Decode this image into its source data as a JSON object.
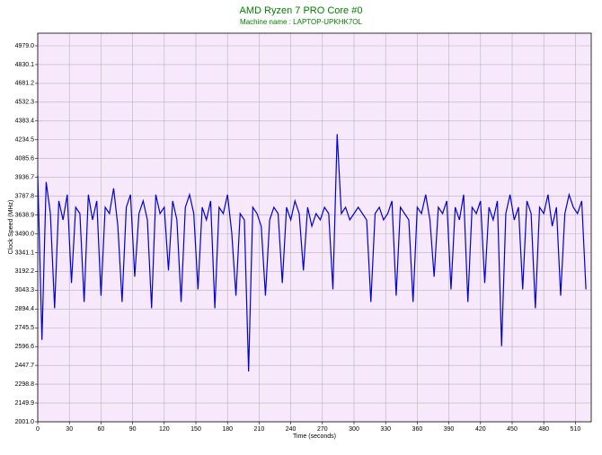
{
  "chart_data": {
    "type": "line",
    "title": "AMD Ryzen 7 PRO Core #0",
    "subtitle": "Machine name : LAPTOP-UPKHK7OL",
    "x_label": "Time (seconds)",
    "y_label": "Clock Speed (MHz)",
    "color": "#0000d8",
    "grid": true,
    "xlim": [
      0,
      525
    ],
    "ylim": [
      2001,
      5078.5
    ],
    "xticks": [
      0,
      30,
      60,
      90,
      120,
      150,
      180,
      210,
      240,
      270,
      300,
      330,
      360,
      390,
      420,
      450,
      480,
      510
    ],
    "yticks": [
      {
        "value": 2001,
        "label": "2001.0"
      },
      2149.9,
      2298.8,
      2447.7,
      2596.6,
      2745.5,
      2894.4,
      3043.3,
      3192.2,
      3341.1,
      {
        "value": 3490,
        "label": "3490.0"
      },
      3638.9,
      3787.8,
      3936.7,
      4085.6,
      4234.5,
      4383.4,
      4532.3,
      4681.2,
      4830.1,
      {
        "value": 4979,
        "label": "4979.0"
      }
    ],
    "x": [
      0,
      4,
      8,
      12,
      16,
      20,
      24,
      28,
      32,
      36,
      40,
      44,
      48,
      52,
      56,
      60,
      64,
      68,
      72,
      76,
      80,
      84,
      88,
      92,
      96,
      100,
      104,
      108,
      112,
      116,
      120,
      124,
      128,
      132,
      136,
      140,
      144,
      148,
      152,
      156,
      160,
      164,
      168,
      172,
      176,
      180,
      184,
      188,
      192,
      196,
      200,
      204,
      208,
      212,
      216,
      220,
      224,
      228,
      232,
      236,
      240,
      244,
      248,
      252,
      256,
      260,
      264,
      268,
      272,
      276,
      280,
      284,
      288,
      292,
      296,
      300,
      304,
      308,
      312,
      316,
      320,
      324,
      328,
      332,
      336,
      340,
      344,
      348,
      352,
      356,
      360,
      364,
      368,
      372,
      376,
      380,
      384,
      388,
      392,
      396,
      400,
      404,
      408,
      412,
      416,
      420,
      424,
      428,
      432,
      436,
      440,
      444,
      448,
      452,
      456,
      460,
      464,
      468,
      472,
      476,
      480,
      484,
      488,
      492,
      496,
      500,
      504,
      508,
      512,
      516,
      520
    ],
    "values": [
      3950,
      2650,
      3900,
      3650,
      2900,
      3750,
      3600,
      3800,
      3100,
      3700,
      3650,
      2950,
      3800,
      3600,
      3750,
      3000,
      3700,
      3650,
      3850,
      3550,
      2950,
      3700,
      3800,
      3150,
      3650,
      3750,
      3600,
      2900,
      3800,
      3650,
      3700,
      3200,
      3750,
      3600,
      2950,
      3700,
      3800,
      3650,
      3050,
      3700,
      3600,
      3750,
      2900,
      3700,
      3650,
      3800,
      3500,
      3000,
      3650,
      3600,
      2400,
      3700,
      3650,
      3550,
      3000,
      3600,
      3700,
      3650,
      3100,
      3700,
      3600,
      3750,
      3650,
      3200,
      3700,
      3550,
      3650,
      3600,
      3700,
      3650,
      3050,
      4280,
      3650,
      3700,
      3600,
      3650,
      3700,
      3650,
      3600,
      2950,
      3650,
      3700,
      3600,
      3650,
      3750,
      3000,
      3700,
      3650,
      3600,
      2950,
      3700,
      3650,
      3800,
      3600,
      3150,
      3700,
      3650,
      3750,
      3050,
      3700,
      3600,
      3800,
      2950,
      3700,
      3650,
      3750,
      3100,
      3700,
      3600,
      3750,
      2600,
      3650,
      3800,
      3600,
      3700,
      3050,
      3750,
      3650,
      2900,
      3700,
      3650,
      3800,
      3550,
      3700,
      3000,
      3650,
      3800,
      3700,
      3650,
      3750,
      3050
    ]
  }
}
